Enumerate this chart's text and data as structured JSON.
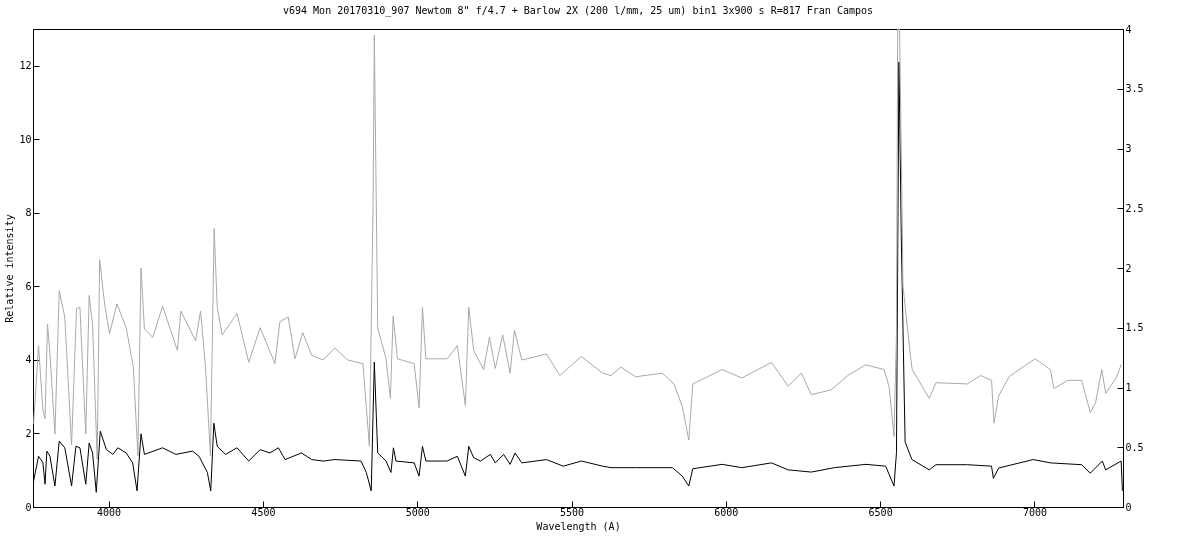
{
  "chart_data": {
    "type": "line",
    "title": "v694 Mon   20170310_907   Newtom 8\"  f/4.7 + Barlow 2X   (200 l/mm, 25 um)   bin1   3x900 s   R=817   Fran Campos",
    "xlabel": "Wavelength (A)",
    "ylabel": "Relative intensity",
    "xlim": [
      3755,
      7287
    ],
    "xticks": [
      4000,
      4500,
      5000,
      5500,
      6000,
      6500,
      7000
    ],
    "ylim": [
      0,
      13
    ],
    "yticks": [
      0,
      2,
      4,
      6,
      8,
      10,
      12
    ],
    "y2lim": [
      0,
      4
    ],
    "y2ticks": [
      0,
      0.5,
      1,
      1.5,
      2,
      2.5,
      3,
      3.5,
      4
    ],
    "grid": false,
    "line_style": "solid",
    "series": [
      {
        "color": "#000000",
        "x": [
          3757,
          3773,
          3787,
          3794,
          3800,
          3810,
          3826,
          3840,
          3858,
          3880,
          3894,
          3907,
          3926,
          3937,
          3948,
          3960,
          3973,
          3993,
          4014,
          4030,
          4057,
          4078,
          4092,
          4105,
          4116,
          4175,
          4218,
          4272,
          4293,
          4320,
          4331,
          4341,
          4352,
          4379,
          4416,
          4454,
          4491,
          4523,
          4550,
          4572,
          4625,
          4658,
          4695,
          4733,
          4818,
          4835,
          4851,
          4861,
          4872,
          4899,
          4915,
          4923,
          4931,
          4990,
          5006,
          5017,
          5028,
          5097,
          5130,
          5156,
          5167,
          5183,
          5205,
          5237,
          5253,
          5280,
          5301,
          5317,
          5339,
          5419,
          5473,
          5532,
          5601,
          5628,
          5708,
          5827,
          5859,
          5880,
          5893,
          5988,
          6052,
          6148,
          6202,
          6277,
          6352,
          6454,
          6518,
          6545,
          6553,
          6561,
          6569,
          6581,
          6603,
          6659,
          6681,
          6783,
          6861,
          6867,
          6884,
          6996,
          7052,
          7153,
          7181,
          7220,
          7231,
          7281,
          7285
        ],
        "values": [
          0.71,
          1.38,
          1.21,
          0.62,
          1.52,
          1.38,
          0.57,
          1.79,
          1.61,
          0.57,
          1.65,
          1.61,
          0.62,
          1.74,
          1.47,
          0.4,
          2.06,
          1.56,
          1.43,
          1.61,
          1.47,
          1.2,
          0.44,
          1.99,
          1.43,
          1.61,
          1.43,
          1.52,
          1.38,
          0.94,
          0.44,
          2.28,
          1.65,
          1.43,
          1.61,
          1.25,
          1.56,
          1.47,
          1.61,
          1.29,
          1.47,
          1.29,
          1.25,
          1.29,
          1.25,
          0.94,
          0.44,
          3.94,
          1.47,
          1.25,
          0.94,
          1.61,
          1.25,
          1.2,
          0.84,
          1.65,
          1.25,
          1.25,
          1.38,
          0.84,
          1.65,
          1.34,
          1.25,
          1.43,
          1.2,
          1.43,
          1.16,
          1.47,
          1.2,
          1.29,
          1.11,
          1.25,
          1.11,
          1.07,
          1.07,
          1.07,
          0.84,
          0.57,
          1.04,
          1.16,
          1.07,
          1.2,
          1.01,
          0.95,
          1.07,
          1.16,
          1.11,
          0.57,
          1.48,
          12.1,
          7.12,
          1.77,
          1.29,
          1.01,
          1.15,
          1.15,
          1.11,
          0.78,
          1.06,
          1.29,
          1.2,
          1.15,
          0.92,
          1.25,
          1.01,
          1.25,
          0.45
        ]
      },
      {
        "color": "#a9a9a9",
        "axis": "y2",
        "x": [
          3757,
          3773,
          3787,
          3794,
          3802,
          3810,
          3826,
          3840,
          3858,
          3880,
          3896,
          3907,
          3926,
          3937,
          3948,
          3963,
          3971,
          3987,
          4003,
          4027,
          4057,
          4080,
          4095,
          4105,
          4116,
          4143,
          4175,
          4223,
          4234,
          4282,
          4298,
          4314,
          4330,
          4342,
          4352,
          4368,
          4416,
          4454,
          4491,
          4539,
          4555,
          4582,
          4604,
          4629,
          4658,
          4695,
          4733,
          4775,
          4824,
          4845,
          4857,
          4861,
          4872,
          4899,
          4913,
          4922,
          4936,
          4990,
          5006,
          5017,
          5028,
          5097,
          5130,
          5156,
          5167,
          5183,
          5215,
          5234,
          5253,
          5277,
          5301,
          5315,
          5339,
          5419,
          5462,
          5532,
          5601,
          5628,
          5660,
          5708,
          5794,
          5832,
          5859,
          5880,
          5893,
          5988,
          6052,
          6148,
          6202,
          6245,
          6277,
          6341,
          6395,
          6454,
          6513,
          6529,
          6545,
          6553,
          6557,
          6563,
          6572,
          6574,
          6598,
          6604,
          6659,
          6681,
          6783,
          6825,
          6861,
          6869,
          6884,
          6918,
          6962,
          7002,
          7052,
          7063,
          7108,
          7153,
          7181,
          7198,
          7218,
          7231,
          7265,
          7281
        ],
        "values": [
          0.7,
          1.35,
          0.81,
          0.74,
          1.53,
          1.28,
          0.61,
          1.81,
          1.59,
          0.52,
          1.66,
          1.67,
          0.61,
          1.77,
          1.53,
          0.4,
          2.07,
          1.7,
          1.45,
          1.7,
          1.5,
          1.17,
          0.43,
          2.0,
          1.49,
          1.42,
          1.68,
          1.31,
          1.64,
          1.39,
          1.64,
          1.17,
          0.43,
          2.33,
          1.67,
          1.44,
          1.62,
          1.21,
          1.5,
          1.2,
          1.55,
          1.59,
          1.24,
          1.46,
          1.27,
          1.23,
          1.33,
          1.23,
          1.2,
          0.51,
          2.53,
          3.95,
          1.5,
          1.24,
          0.91,
          1.6,
          1.24,
          1.2,
          0.83,
          1.67,
          1.24,
          1.24,
          1.35,
          0.85,
          1.67,
          1.31,
          1.15,
          1.42,
          1.16,
          1.44,
          1.12,
          1.48,
          1.23,
          1.28,
          1.1,
          1.26,
          1.12,
          1.1,
          1.17,
          1.09,
          1.12,
          1.03,
          0.84,
          0.56,
          1.03,
          1.15,
          1.08,
          1.21,
          1.01,
          1.12,
          0.94,
          0.98,
          1.1,
          1.19,
          1.15,
          1.01,
          0.59,
          1.45,
          4.0,
          4.0,
          2.3,
          1.85,
          1.27,
          1.15,
          0.91,
          1.04,
          1.03,
          1.1,
          1.06,
          0.7,
          0.93,
          1.09,
          1.17,
          1.24,
          1.15,
          0.99,
          1.06,
          1.06,
          0.79,
          0.87,
          1.15,
          0.95,
          1.08,
          1.19
        ]
      }
    ]
  }
}
